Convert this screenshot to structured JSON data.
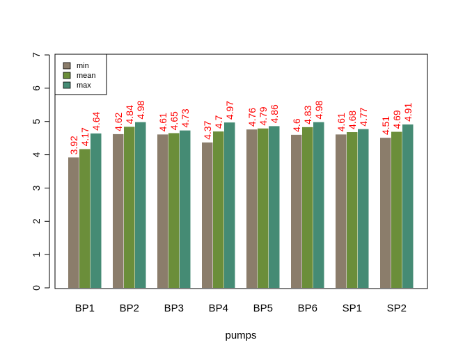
{
  "chart_data": {
    "type": "bar",
    "title": "",
    "xlabel": "pumps",
    "ylabel": "",
    "ylim": [
      0,
      7
    ],
    "yticks": [
      0,
      1,
      2,
      3,
      4,
      5,
      6,
      7
    ],
    "categories": [
      "BP1",
      "BP2",
      "BP3",
      "BP4",
      "BP5",
      "BP6",
      "SP1",
      "SP2"
    ],
    "series": [
      {
        "name": "min",
        "color": "#8b7d6b",
        "values": [
          3.92,
          4.62,
          4.61,
          4.37,
          4.76,
          4.6,
          4.61,
          4.51
        ],
        "labels": [
          "3.92",
          "4.62",
          "4.61",
          "4.37",
          "4.76",
          "4.6",
          "4.61",
          "4.51"
        ]
      },
      {
        "name": "mean",
        "color": "#6b8e3a",
        "values": [
          4.17,
          4.84,
          4.65,
          4.7,
          4.79,
          4.83,
          4.68,
          4.69
        ],
        "labels": [
          "4.17",
          "4.84",
          "4.65",
          "4.7",
          "4.79",
          "4.83",
          "4.68",
          "4.69"
        ]
      },
      {
        "name": "max",
        "color": "#458b74",
        "values": [
          4.64,
          4.98,
          4.73,
          4.97,
          4.86,
          4.98,
          4.77,
          4.91
        ],
        "labels": [
          "4.64",
          "4.98",
          "4.73",
          "4.97",
          "4.86",
          "4.98",
          "4.77",
          "4.91"
        ]
      }
    ],
    "data_label_color": "#ff0000",
    "legend_position": "top-left",
    "grid": false
  }
}
